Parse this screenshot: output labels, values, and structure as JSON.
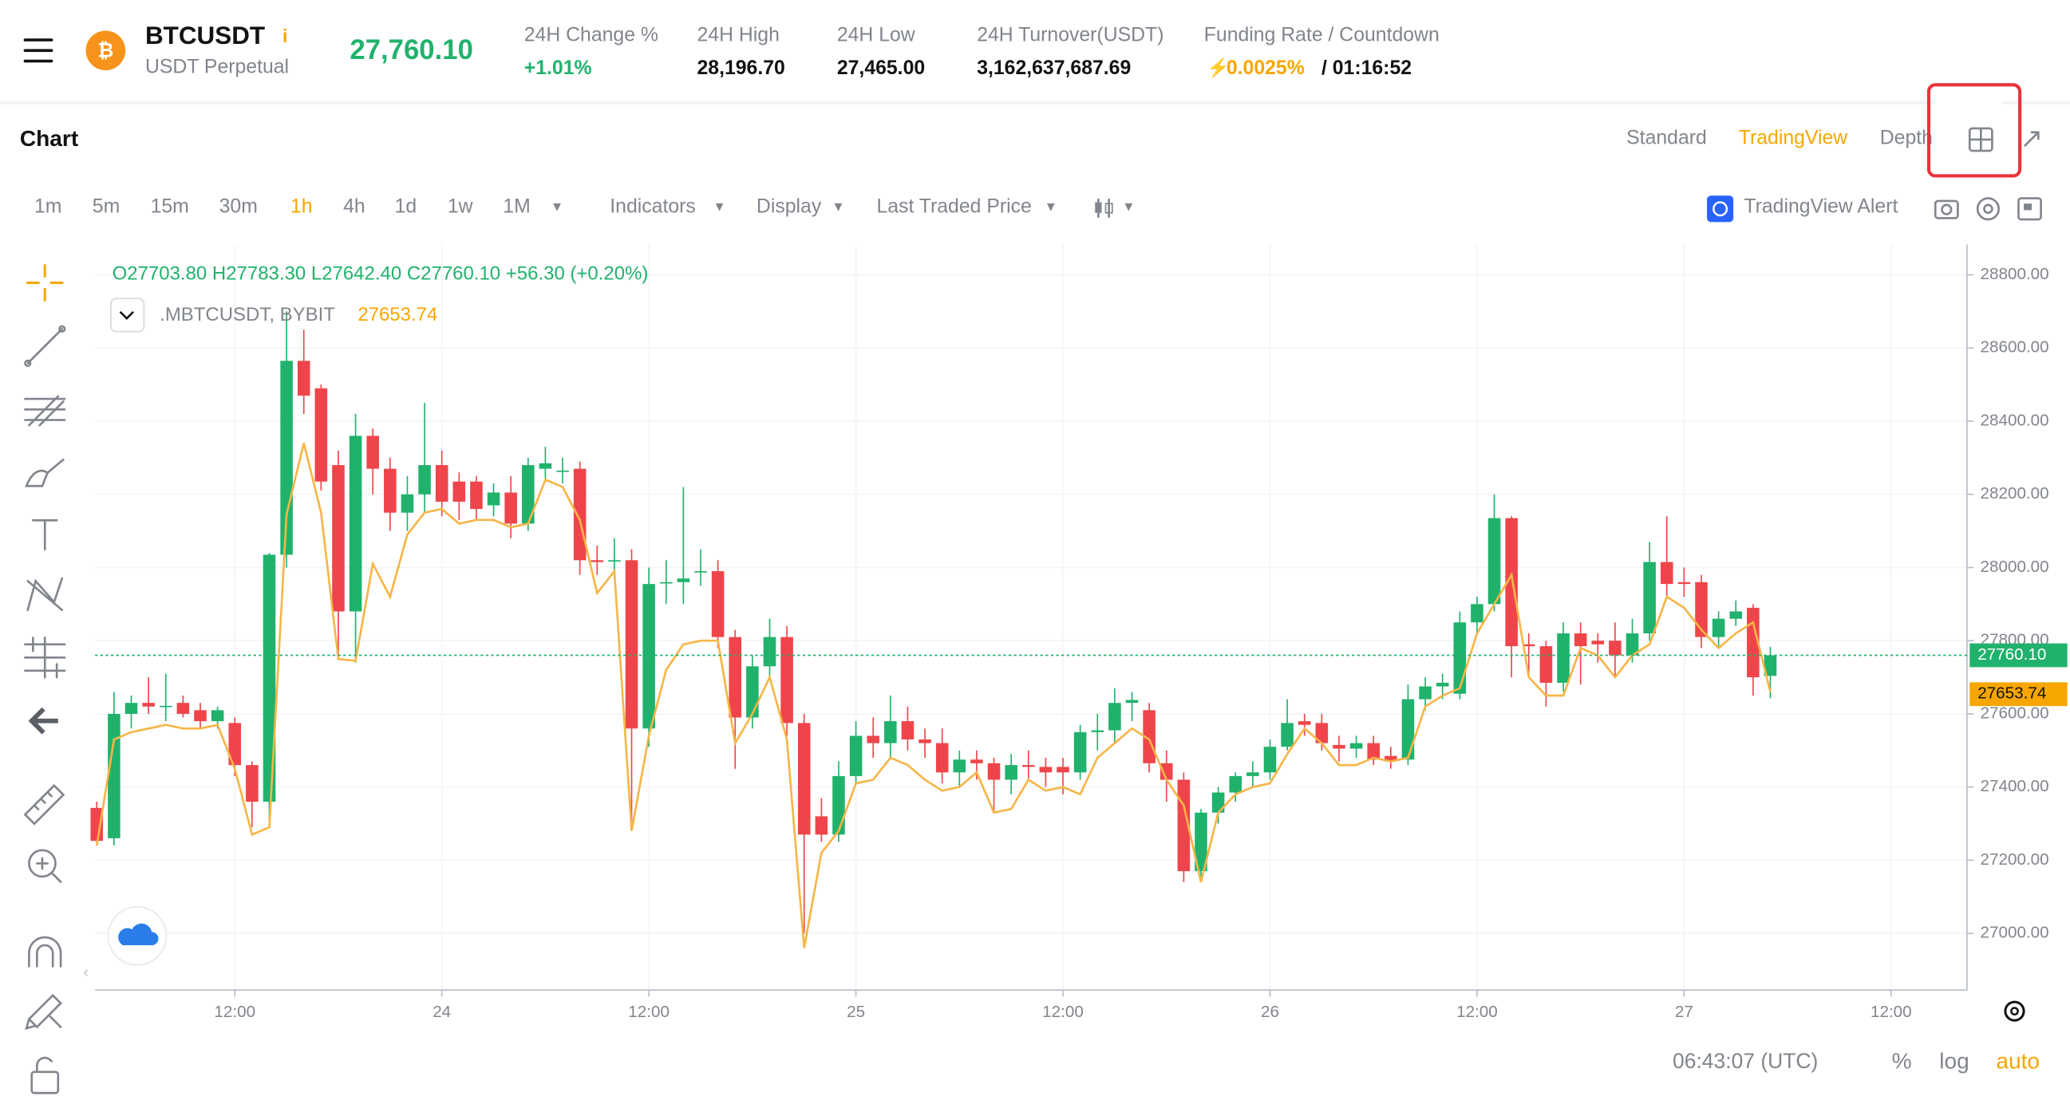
{
  "header": {
    "symbol": "BTCUSDT",
    "contract": "USDT Perpetual",
    "price": "27,760.10",
    "stats": [
      {
        "label": "24H Change %",
        "value": "+1.01%"
      },
      {
        "label": "24H High",
        "value": "28,196.70"
      },
      {
        "label": "24H Low",
        "value": "27,465.00"
      },
      {
        "label": "24H Turnover(USDT)",
        "value": "3,162,637,687.69"
      }
    ],
    "funding": {
      "label": "Funding Rate / Countdown",
      "rate": "0.0025%",
      "countdown": "/ 01:16:52"
    }
  },
  "panel": {
    "title": "Chart",
    "views": [
      "Standard",
      "TradingView",
      "Depth"
    ]
  },
  "toolbar": {
    "intervals": [
      "1m",
      "5m",
      "15m",
      "30m",
      "1h",
      "4h",
      "1d",
      "1w",
      "1M"
    ],
    "menus": [
      "Indicators",
      "Display",
      "Last Traded Price"
    ],
    "alert": "TradingView Alert"
  },
  "footer": {
    "time": "06:43:07 (UTC)",
    "options": [
      "%",
      "log",
      "auto"
    ]
  },
  "chart_data": {
    "type": "candlestick",
    "legend": {
      "open": "O27703.80",
      "high": "H27783.30",
      "low": "L27642.40",
      "close": "C27760.10",
      "change": "+56.30 (+0.20%)",
      "index_name": ".MBTCUSDT, BYBIT"
    },
    "up_color": "#20b26c",
    "down_color": "#ef454a",
    "index_color": "#f7b547",
    "ylim": [
      26845,
      28883
    ],
    "xlim": [
      -0.1,
      108.4
    ],
    "yticks": [
      {
        "value": 27000,
        "label": "27000.00"
      },
      {
        "value": 27200,
        "label": "27200.00"
      },
      {
        "value": 27400,
        "label": "27400.00"
      },
      {
        "value": 27600,
        "label": "27600.00"
      },
      {
        "value": 27800,
        "label": "27800.00"
      },
      {
        "value": 28000,
        "label": "28000.00"
      },
      {
        "value": 28200,
        "label": "28200.00"
      },
      {
        "value": 28400,
        "label": "28400.00"
      },
      {
        "value": 28600,
        "label": "28600.00"
      },
      {
        "value": 28800,
        "label": "28800.00"
      }
    ],
    "xticks": [
      {
        "value": 8,
        "label": "12:00"
      },
      {
        "value": 20,
        "label": "24"
      },
      {
        "value": 32,
        "label": "12:00"
      },
      {
        "value": 44,
        "label": "25"
      },
      {
        "value": 56,
        "label": "12:00"
      },
      {
        "value": 68,
        "label": "26"
      },
      {
        "value": 80,
        "label": "12:00"
      },
      {
        "value": 92,
        "label": "27"
      },
      {
        "value": 104,
        "label": "12:00"
      }
    ],
    "last_price": {
      "value": 27760.1,
      "label": "27760.10"
    },
    "index_price": {
      "value": 27653.74,
      "label": "27653.74"
    },
    "open": [
      27343,
      27260,
      27600,
      27630,
      27620,
      27630,
      27610,
      27580,
      27575,
      27460,
      27360,
      28035,
      28565,
      28490,
      28280,
      27880,
      28360,
      28270,
      28150,
      28200,
      28280,
      28235,
      28235,
      28170,
      28205,
      28120,
      28270,
      28265,
      28270,
      28020,
      28020,
      28020,
      27560,
      27960,
      27960,
      27990,
      27990,
      27810,
      27590,
      27730,
      27810,
      27575,
      27320,
      27270,
      27430,
      27540,
      27520,
      27580,
      27530,
      27520,
      27440,
      27475,
      27465,
      27420,
      27460,
      27455,
      27455,
      27440,
      27550,
      27555,
      27630,
      27610,
      27465,
      27420,
      27170,
      27330,
      27385,
      27430,
      27440,
      27510,
      27580,
      27575,
      27515,
      27505,
      27520,
      27485,
      27475,
      27640,
      27675,
      27655,
      27850,
      27900,
      28135,
      27790,
      27785,
      27685,
      27820,
      27800,
      27800,
      27760,
      27820,
      28015,
      27960,
      27960,
      27810,
      27860,
      27890,
      27703.8
    ],
    "high": [
      27360,
      27660,
      27650,
      27700,
      27710,
      27650,
      27630,
      27620,
      27590,
      27470,
      28040,
      28700,
      28650,
      28500,
      28320,
      28420,
      28380,
      28300,
      28250,
      28450,
      28320,
      28260,
      28250,
      28230,
      28250,
      28300,
      28330,
      28300,
      28290,
      28060,
      28080,
      28050,
      28000,
      28020,
      28220,
      28050,
      28020,
      27830,
      27760,
      27860,
      27840,
      27600,
      27370,
      27470,
      27580,
      27590,
      27650,
      27620,
      27560,
      27560,
      27500,
      27500,
      27480,
      27490,
      27500,
      27480,
      27480,
      27570,
      27600,
      27670,
      27660,
      27630,
      27500,
      27440,
      27340,
      27400,
      27440,
      27470,
      27530,
      27640,
      27600,
      27600,
      27540,
      27540,
      27540,
      27510,
      27680,
      27700,
      27710,
      27880,
      27920,
      28200,
      28140,
      27820,
      27800,
      27850,
      27850,
      27820,
      27850,
      27860,
      28070,
      28140,
      28000,
      27980,
      27880,
      27910,
      27900,
      27783.3
    ],
    "low": [
      27240,
      27240,
      27560,
      27600,
      27580,
      27590,
      27560,
      27560,
      27430,
      27290,
      27300,
      28000,
      28420,
      28210,
      27760,
      27740,
      28200,
      28100,
      28100,
      28150,
      28140,
      28130,
      28130,
      28140,
      28080,
      28100,
      28240,
      28230,
      27980,
      27980,
      27980,
      27300,
      27510,
      27900,
      27900,
      27950,
      27780,
      27450,
      27560,
      27700,
      27540,
      27000,
      27250,
      27250,
      27410,
      27480,
      27480,
      27500,
      27480,
      27410,
      27400,
      27420,
      27330,
      27380,
      27420,
      27400,
      27380,
      27420,
      27500,
      27520,
      27580,
      27440,
      27360,
      27140,
      27140,
      27300,
      27360,
      27400,
      27420,
      27500,
      27540,
      27500,
      27470,
      27480,
      27460,
      27450,
      27460,
      27610,
      27640,
      27640,
      27820,
      27880,
      27700,
      27700,
      27620,
      27660,
      27680,
      27740,
      27700,
      27740,
      27800,
      27920,
      27920,
      27780,
      27780,
      27840,
      27650,
      27642.4
    ],
    "close": [
      27253,
      27600,
      27630,
      27620,
      27622,
      27600,
      27580,
      27610,
      27460,
      27360,
      28035,
      28565,
      28470,
      28235,
      27880,
      28360,
      28270,
      28150,
      28200,
      28280,
      28180,
      28180,
      28160,
      28205,
      28120,
      28280,
      28285,
      28265,
      28020,
      28015,
      28020,
      27560,
      27955,
      27960,
      27970,
      27990,
      27810,
      27590,
      27730,
      27810,
      27575,
      27270,
      27270,
      27430,
      27540,
      27520,
      27580,
      27530,
      27520,
      27440,
      27475,
      27465,
      27420,
      27460,
      27455,
      27440,
      27440,
      27550,
      27555,
      27630,
      27638,
      27465,
      27420,
      27170,
      27330,
      27385,
      27430,
      27440,
      27510,
      27575,
      27570,
      27520,
      27505,
      27520,
      27475,
      27470,
      27640,
      27675,
      27685,
      27850,
      27900,
      28135,
      27785,
      27785,
      27685,
      27820,
      27785,
      27790,
      27760,
      27820,
      28015,
      27955,
      27955,
      27810,
      27860,
      27880,
      27700,
      27760.1
    ],
    "index_values": [
      27240,
      27530,
      27550,
      27560,
      27570,
      27560,
      27560,
      27570,
      27450,
      27270,
      27290,
      28145,
      28340,
      28150,
      27750,
      27745,
      28010,
      27920,
      28090,
      28150,
      28160,
      28120,
      28130,
      28130,
      28110,
      28120,
      28240,
      28220,
      28130,
      27930,
      27990,
      27280,
      27540,
      27720,
      27790,
      27800,
      27800,
      27520,
      27600,
      27700,
      27530,
      26960,
      27220,
      27280,
      27410,
      27420,
      27480,
      27460,
      27420,
      27390,
      27400,
      27440,
      27330,
      27340,
      27420,
      27390,
      27400,
      27380,
      27480,
      27520,
      27560,
      27530,
      27420,
      27350,
      27140,
      27330,
      27380,
      27400,
      27410,
      27490,
      27560,
      27520,
      27460,
      27460,
      27480,
      27470,
      27480,
      27620,
      27650,
      27670,
      27820,
      27900,
      27980,
      27700,
      27650,
      27650,
      27780,
      27760,
      27700,
      27760,
      27790,
      27920,
      27890,
      27830,
      27780,
      27820,
      27850,
      27660
    ]
  }
}
